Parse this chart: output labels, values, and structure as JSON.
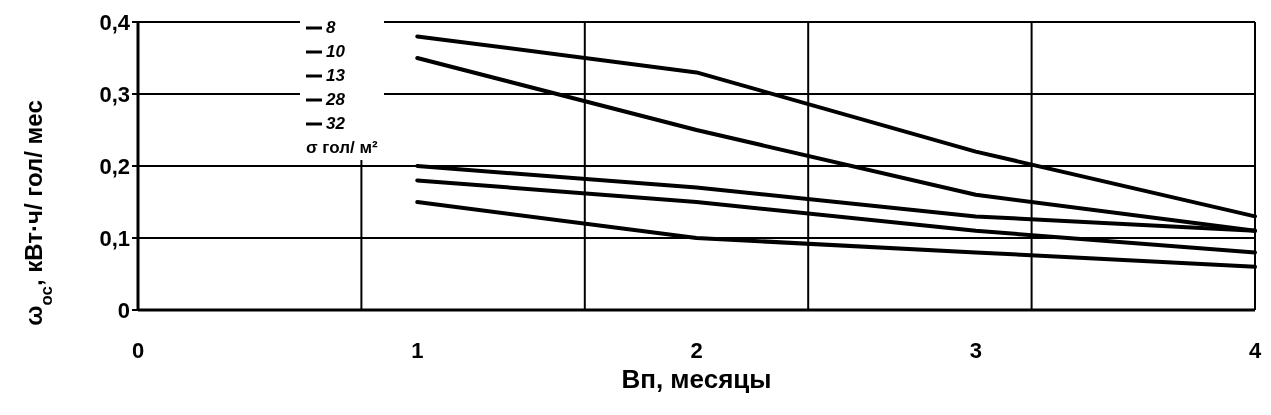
{
  "chart_data": {
    "type": "line",
    "xlabel": "Вп, месяцы",
    "ylabel": "ω$_{ос}$, кВт·ч/ гол/ мес",
    "legend_title": "σ гол/ м²",
    "categories": [
      "0",
      "1",
      "2",
      "3",
      "4"
    ],
    "series": [
      {
        "name": "8",
        "color": "#000000",
        "values": [
          null,
          0.38,
          0.33,
          0.22,
          0.13
        ]
      },
      {
        "name": "10",
        "color": "#000000",
        "values": [
          null,
          0.35,
          0.25,
          0.16,
          0.11
        ]
      },
      {
        "name": "13",
        "color": "#000000",
        "values": [
          null,
          0.2,
          0.17,
          0.13,
          0.11
        ]
      },
      {
        "name": "28",
        "color": "#000000",
        "values": [
          null,
          0.18,
          0.15,
          0.11,
          0.08
        ]
      },
      {
        "name": "32",
        "color": "#000000",
        "values": [
          null,
          0.15,
          0.1,
          0.08,
          0.06
        ]
      }
    ],
    "ylim": [
      0,
      0.4
    ],
    "yticks": [
      0,
      {
        "value": 0.1,
        "label": "0,1"
      },
      {
        "value": 0.2,
        "label": "0,2"
      },
      {
        "value": 0.3,
        "label": "0,3"
      },
      {
        "value": 0.4,
        "label": "0,4"
      }
    ],
    "grid": true,
    "legend": "top left",
    "marker": "none",
    "line_style": "solid"
  }
}
